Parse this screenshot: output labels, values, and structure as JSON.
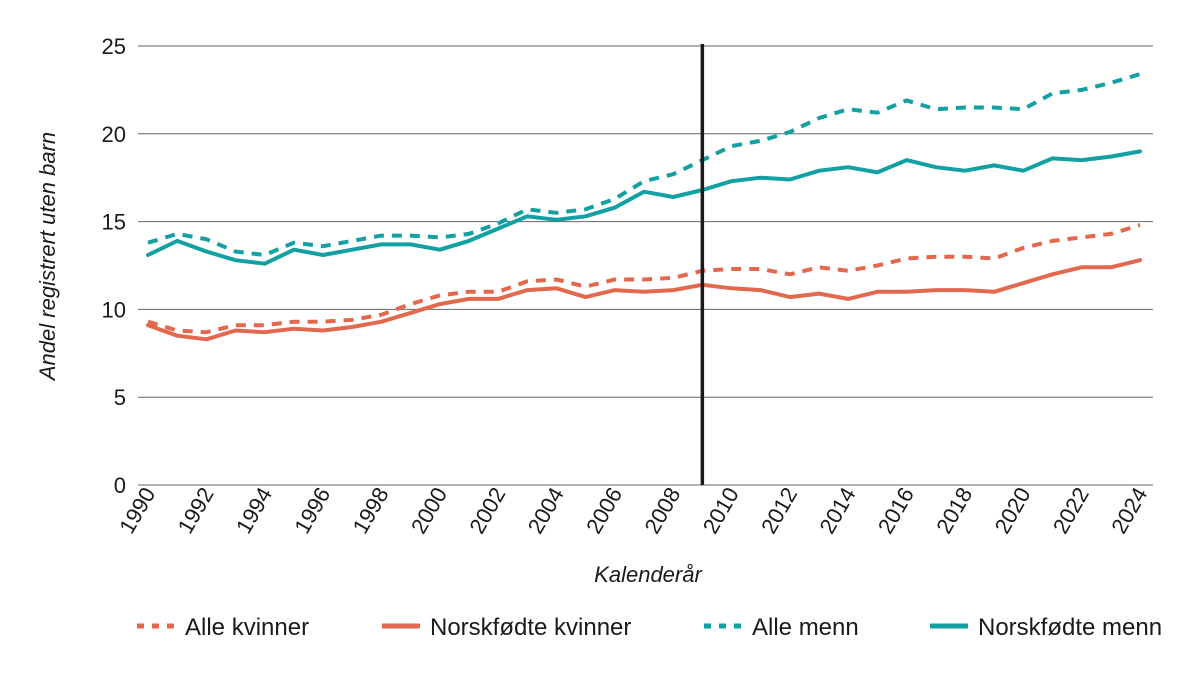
{
  "chart_data": {
    "type": "line",
    "title": "",
    "xlabel": "Kalenderår",
    "ylabel": "Andel registrert uten barn",
    "x": [
      1990,
      1991,
      1992,
      1993,
      1994,
      1995,
      1996,
      1997,
      1998,
      1999,
      2000,
      2001,
      2002,
      2003,
      2004,
      2005,
      2006,
      2007,
      2008,
      2009,
      2010,
      2011,
      2012,
      2013,
      2014,
      2015,
      2016,
      2017,
      2018,
      2019,
      2020,
      2021,
      2022,
      2023,
      2024
    ],
    "xlim": [
      1990,
      2024
    ],
    "ylim": [
      0,
      25
    ],
    "y_ticks": [
      0,
      5,
      10,
      15,
      20,
      25
    ],
    "x_ticks": [
      1990,
      1992,
      1994,
      1996,
      1998,
      2000,
      2002,
      2004,
      2006,
      2008,
      2010,
      2012,
      2014,
      2016,
      2018,
      2020,
      2022,
      2024
    ],
    "grid": "horizontal",
    "reference_line_x": 2009,
    "legend_position": "bottom",
    "series": [
      {
        "name": "Alle kvinner",
        "color": "#e2684e",
        "style": "dashed",
        "values": [
          9.3,
          8.8,
          8.7,
          9.1,
          9.1,
          9.3,
          9.3,
          9.4,
          9.7,
          10.3,
          10.8,
          11.0,
          11.0,
          11.6,
          11.7,
          11.3,
          11.7,
          11.7,
          11.8,
          12.2,
          12.3,
          12.3,
          12.0,
          12.4,
          12.2,
          12.5,
          12.9,
          13.0,
          13.0,
          12.9,
          13.5,
          13.9,
          14.1,
          14.3,
          14.8
        ]
      },
      {
        "name": "Norskfødte kvinner",
        "color": "#e2684e",
        "style": "solid",
        "values": [
          9.1,
          8.5,
          8.3,
          8.8,
          8.7,
          8.9,
          8.8,
          9.0,
          9.3,
          9.8,
          10.3,
          10.6,
          10.6,
          11.1,
          11.2,
          10.7,
          11.1,
          11.0,
          11.1,
          11.4,
          11.2,
          11.1,
          10.7,
          10.9,
          10.6,
          11.0,
          11.0,
          11.1,
          11.1,
          11.0,
          11.5,
          12.0,
          12.4,
          12.4,
          12.8
        ]
      },
      {
        "name": "Alle menn",
        "color": "#12a0a3",
        "style": "dashed",
        "values": [
          13.8,
          14.3,
          14.0,
          13.3,
          13.1,
          13.8,
          13.6,
          13.9,
          14.2,
          14.2,
          14.1,
          14.3,
          14.9,
          15.7,
          15.5,
          15.7,
          16.3,
          17.3,
          17.7,
          18.5,
          19.3,
          19.6,
          20.1,
          20.9,
          21.4,
          21.2,
          21.9,
          21.4,
          21.5,
          21.5,
          21.4,
          22.3,
          22.5,
          22.9,
          23.4
        ]
      },
      {
        "name": "Norskfødte menn",
        "color": "#12a0a3",
        "style": "solid",
        "values": [
          13.1,
          13.9,
          13.3,
          12.8,
          12.6,
          13.4,
          13.1,
          13.4,
          13.7,
          13.7,
          13.4,
          13.9,
          14.6,
          15.3,
          15.1,
          15.3,
          15.8,
          16.7,
          16.4,
          16.8,
          17.3,
          17.5,
          17.4,
          17.9,
          18.1,
          17.8,
          18.5,
          18.1,
          17.9,
          18.2,
          17.9,
          18.6,
          18.5,
          18.7,
          19.0
        ]
      }
    ]
  }
}
